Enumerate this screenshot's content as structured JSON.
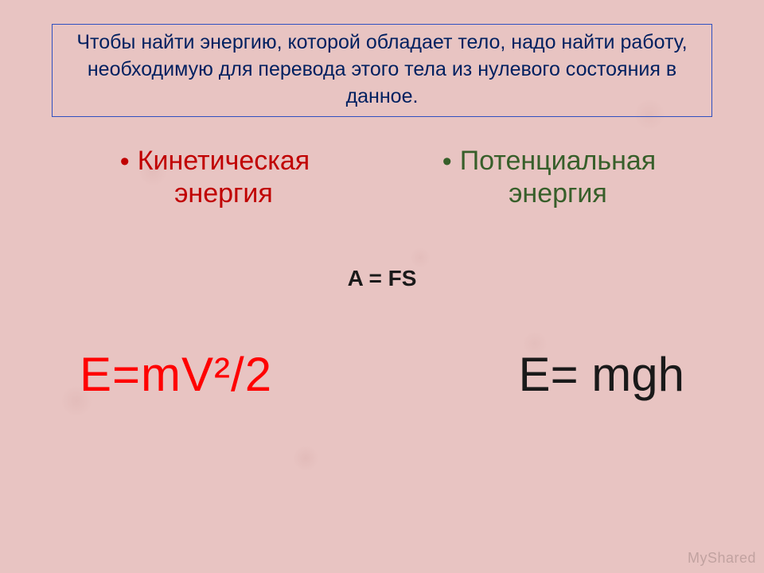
{
  "slide": {
    "background_color": "#e8c4c2",
    "title": {
      "text": "Чтобы найти энергию, которой обладает тело, надо найти работу, необходимую для перевода этого тела из нулевого состояния в данное.",
      "color": "#002060",
      "border_color": "#3050c0",
      "font_size": 25
    },
    "columns": {
      "left": {
        "heading_line1": "Кинетическая",
        "heading_line2": "энергия",
        "color": "#c00000",
        "font_size": 34
      },
      "right": {
        "heading_line1": "Потенциальная",
        "heading_line2": "энергия",
        "color": "#375f2a",
        "font_size": 34
      }
    },
    "center_formula": {
      "text": "A = FS",
      "color": "#1a1a1a",
      "font_size": 28,
      "font_weight": "bold"
    },
    "formulas": {
      "kinetic": {
        "text": "E=mV²/2",
        "color": "#ff0000",
        "font_size": 60
      },
      "potential": {
        "text": "E= mgh",
        "color": "#1a1a1a",
        "font_size": 60
      }
    },
    "watermark": "MyShared"
  }
}
